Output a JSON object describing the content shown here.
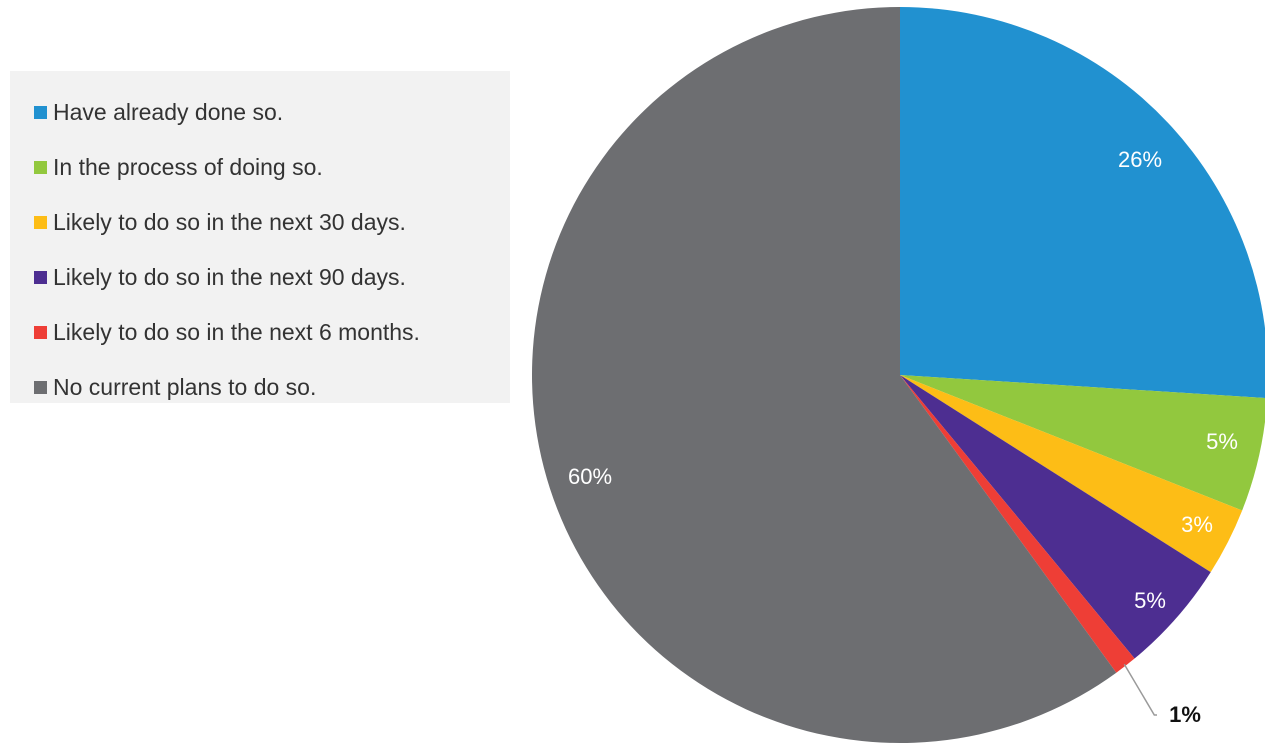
{
  "chart_data": {
    "type": "pie",
    "legend_position": "left",
    "start_angle_deg": 0,
    "direction": "clockwise",
    "slices": [
      {
        "label": "Have already done so.",
        "value": 26,
        "value_label": "26%",
        "color": "#2191d0",
        "label_color": "#ffffff"
      },
      {
        "label": "In the process of doing so.",
        "value": 5,
        "value_label": "5%",
        "color": "#92c83e",
        "label_color": "#ffffff"
      },
      {
        "label": "Likely to do so in the next 30 days.",
        "value": 3,
        "value_label": "3%",
        "color": "#fdbd16",
        "label_color": "#ffffff"
      },
      {
        "label": "Likely to do so in the next 90 days.",
        "value": 5,
        "value_label": "5%",
        "color": "#4d2e91",
        "label_color": "#ffffff"
      },
      {
        "label": "Likely to do so in the next 6 months.",
        "value": 1,
        "value_label": "1%",
        "color": "#ee3e36",
        "label_color": "#111111",
        "label_outside": true
      },
      {
        "label": "No current plans to do so.",
        "value": 60,
        "value_label": "60%",
        "color": "#6d6e71",
        "label_color": "#ffffff"
      }
    ]
  }
}
